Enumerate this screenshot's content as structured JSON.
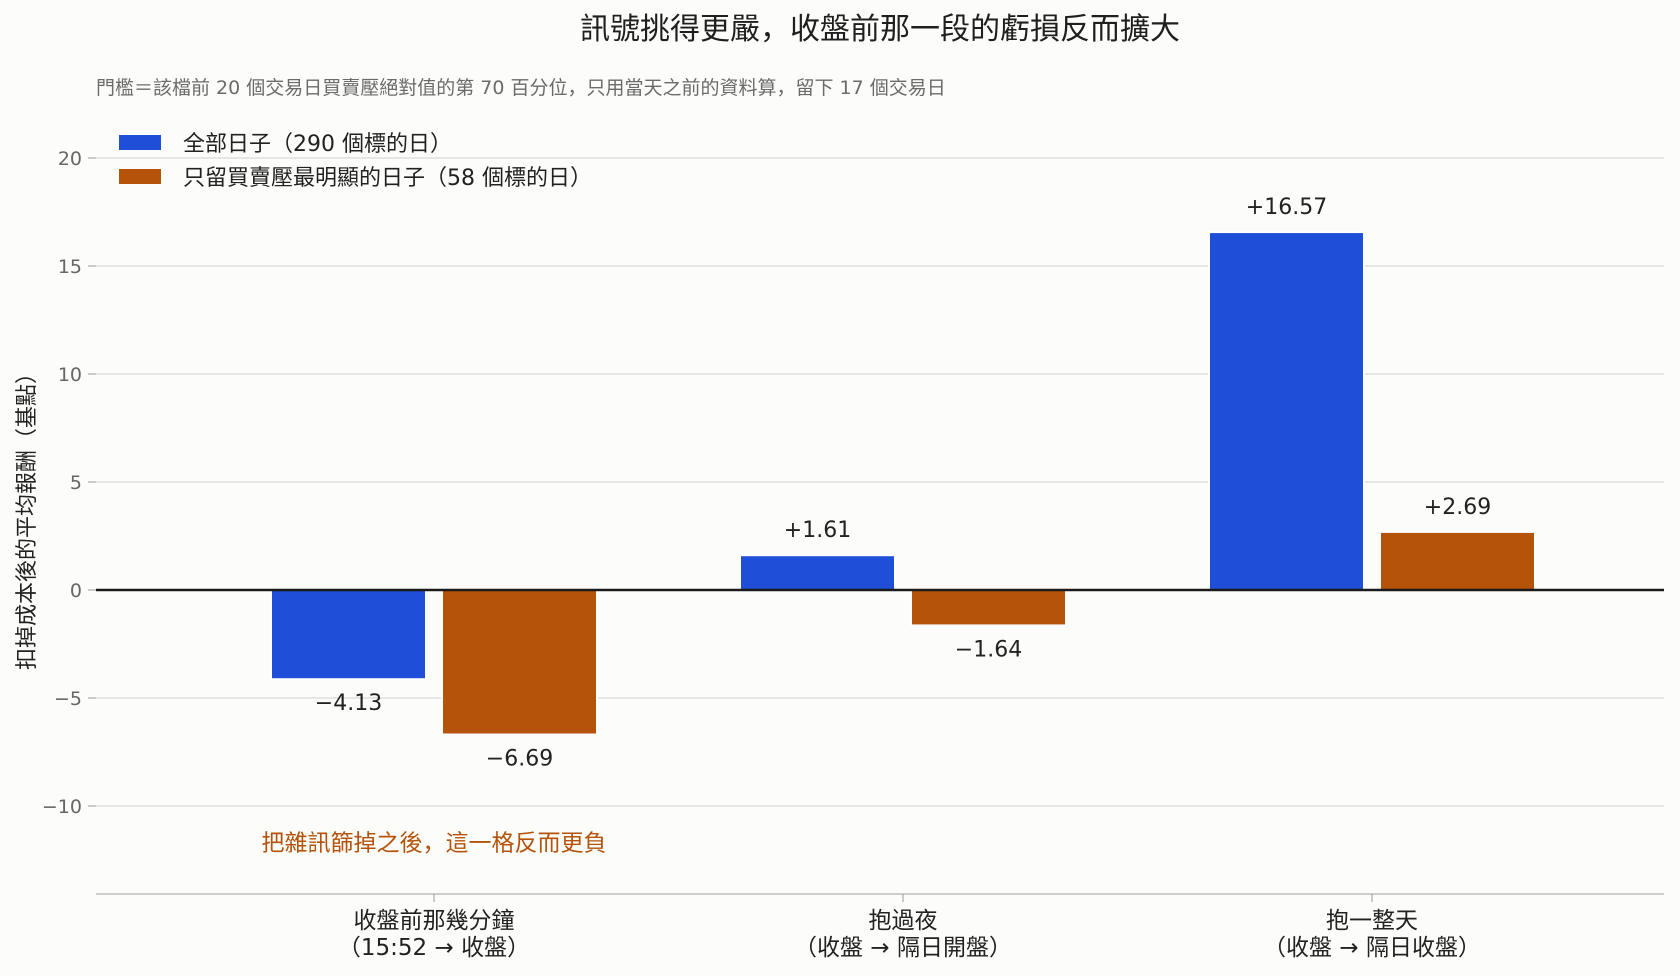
{
  "chart_data": {
    "type": "bar",
    "title": "訊號挑得更嚴，收盤前那一段的虧損反而擴大",
    "subtitle": "門檻＝該檔前 20 個交易日買賣壓絕對值的第 70 百分位，只用當天之前的資料算，留下 17 個交易日",
    "ylabel": "扣掉成本後的平均報酬（基點）",
    "ylim": [
      -14,
      21
    ],
    "yticks": [
      -10,
      -5,
      0,
      5,
      10,
      15,
      20
    ],
    "ytick_labels": [
      "−10",
      "−5",
      "0",
      "5",
      "10",
      "15",
      "20"
    ],
    "categories": [
      [
        "收盤前那幾分鐘",
        "（15:52 → 收盤）"
      ],
      [
        "抱過夜",
        "（收盤 → 隔日開盤）"
      ],
      [
        "抱一整天",
        "（收盤 → 隔日收盤）"
      ]
    ],
    "series": [
      {
        "name": "全部日子（290 個標的日）",
        "color": "#1f4fd8",
        "values": [
          -4.13,
          1.61,
          16.57
        ],
        "labels": [
          "−4.13",
          "+1.61",
          "+16.57"
        ]
      },
      {
        "name": "只留買賣壓最明顯的日子（58 個標的日）",
        "color": "#b5530a",
        "values": [
          -6.69,
          -1.64,
          2.69
        ],
        "labels": [
          "−6.69",
          "−1.64",
          "+2.69"
        ]
      }
    ],
    "annotation": {
      "text": "把雜訊篩掉之後，這一格反而更負",
      "color": "#b5530a",
      "category_index": 0,
      "y": -11.7
    },
    "legend_position": "top-left",
    "grid": "horizontal"
  }
}
